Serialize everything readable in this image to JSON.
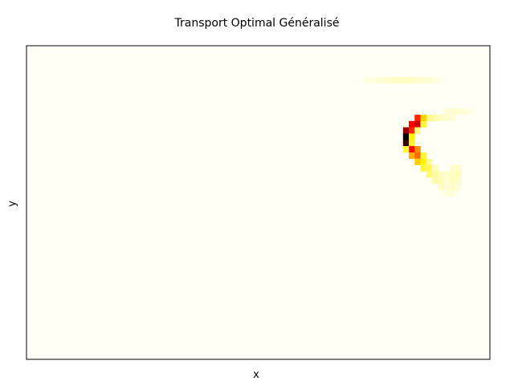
{
  "chart_data": {
    "type": "heatmap",
    "title": "Transport Optimal Généralisé",
    "xlabel": "x",
    "ylabel": "y",
    "ticks_visible": false,
    "grid": false,
    "legend": "none",
    "colormap": "hot_r",
    "colors": {
      "background": "#fffff6",
      "frame": "#000000",
      "low": "#fffff6",
      "mid": "#fff200",
      "high": "#ff0000",
      "peak": "#000000"
    },
    "grid_size": [
      80,
      50
    ],
    "cells": [
      {
        "col": 58,
        "row": 5,
        "v": 0.03
      },
      {
        "col": 59,
        "row": 5,
        "v": 0.04
      },
      {
        "col": 60,
        "row": 5,
        "v": 0.05
      },
      {
        "col": 61,
        "row": 5,
        "v": 0.06
      },
      {
        "col": 62,
        "row": 5,
        "v": 0.07
      },
      {
        "col": 63,
        "row": 5,
        "v": 0.08
      },
      {
        "col": 64,
        "row": 5,
        "v": 0.09
      },
      {
        "col": 65,
        "row": 5,
        "v": 0.09
      },
      {
        "col": 66,
        "row": 5,
        "v": 0.08
      },
      {
        "col": 67,
        "row": 5,
        "v": 0.07
      },
      {
        "col": 68,
        "row": 5,
        "v": 0.06
      },
      {
        "col": 69,
        "row": 5,
        "v": 0.05
      },
      {
        "col": 70,
        "row": 5,
        "v": 0.04
      },
      {
        "col": 71,
        "row": 5,
        "v": 0.03
      },
      {
        "col": 72,
        "row": 10,
        "v": 0.05
      },
      {
        "col": 73,
        "row": 10,
        "v": 0.06
      },
      {
        "col": 74,
        "row": 10,
        "v": 0.07
      },
      {
        "col": 75,
        "row": 10,
        "v": 0.05
      },
      {
        "col": 76,
        "row": 10,
        "v": 0.03
      },
      {
        "col": 69,
        "row": 11,
        "v": 0.18
      },
      {
        "col": 70,
        "row": 11,
        "v": 0.12
      },
      {
        "col": 71,
        "row": 11,
        "v": 0.09
      },
      {
        "col": 72,
        "row": 11,
        "v": 0.07
      },
      {
        "col": 73,
        "row": 11,
        "v": 0.05
      },
      {
        "col": 67,
        "row": 11,
        "v": 0.7
      },
      {
        "col": 68,
        "row": 11,
        "v": 0.45
      },
      {
        "col": 66,
        "row": 12,
        "v": 0.75
      },
      {
        "col": 67,
        "row": 12,
        "v": 0.8
      },
      {
        "col": 68,
        "row": 12,
        "v": 0.3
      },
      {
        "col": 65,
        "row": 13,
        "v": 0.85
      },
      {
        "col": 66,
        "row": 13,
        "v": 0.7
      },
      {
        "col": 67,
        "row": 13,
        "v": 0.2
      },
      {
        "col": 65,
        "row": 14,
        "v": 1.0
      },
      {
        "col": 66,
        "row": 14,
        "v": 0.4
      },
      {
        "col": 65,
        "row": 15,
        "v": 0.95
      },
      {
        "col": 66,
        "row": 15,
        "v": 0.35
      },
      {
        "col": 66,
        "row": 16,
        "v": 0.75
      },
      {
        "col": 67,
        "row": 16,
        "v": 0.55
      },
      {
        "col": 65,
        "row": 16,
        "v": 0.3
      },
      {
        "col": 66,
        "row": 17,
        "v": 0.5
      },
      {
        "col": 67,
        "row": 17,
        "v": 0.6
      },
      {
        "col": 68,
        "row": 17,
        "v": 0.3
      },
      {
        "col": 67,
        "row": 18,
        "v": 0.45
      },
      {
        "col": 68,
        "row": 18,
        "v": 0.4
      },
      {
        "col": 69,
        "row": 18,
        "v": 0.15
      },
      {
        "col": 68,
        "row": 19,
        "v": 0.3
      },
      {
        "col": 69,
        "row": 19,
        "v": 0.25
      },
      {
        "col": 70,
        "row": 19,
        "v": 0.1
      },
      {
        "col": 69,
        "row": 20,
        "v": 0.2
      },
      {
        "col": 70,
        "row": 20,
        "v": 0.15
      },
      {
        "col": 71,
        "row": 20,
        "v": 0.08
      },
      {
        "col": 70,
        "row": 21,
        "v": 0.12
      },
      {
        "col": 71,
        "row": 21,
        "v": 0.1
      },
      {
        "col": 71,
        "row": 22,
        "v": 0.08
      },
      {
        "col": 72,
        "row": 22,
        "v": 0.07
      },
      {
        "col": 73,
        "row": 19,
        "v": 0.06
      },
      {
        "col": 74,
        "row": 19,
        "v": 0.08
      },
      {
        "col": 72,
        "row": 20,
        "v": 0.07
      },
      {
        "col": 73,
        "row": 20,
        "v": 0.09
      },
      {
        "col": 74,
        "row": 20,
        "v": 0.1
      },
      {
        "col": 72,
        "row": 21,
        "v": 0.06
      },
      {
        "col": 73,
        "row": 21,
        "v": 0.09
      },
      {
        "col": 74,
        "row": 21,
        "v": 0.07
      },
      {
        "col": 72,
        "row": 22,
        "v": 0.05
      },
      {
        "col": 73,
        "row": 22,
        "v": 0.07
      },
      {
        "col": 74,
        "row": 22,
        "v": 0.05
      },
      {
        "col": 73,
        "row": 23,
        "v": 0.05
      },
      {
        "col": 72,
        "row": 23,
        "v": 0.04
      }
    ]
  }
}
